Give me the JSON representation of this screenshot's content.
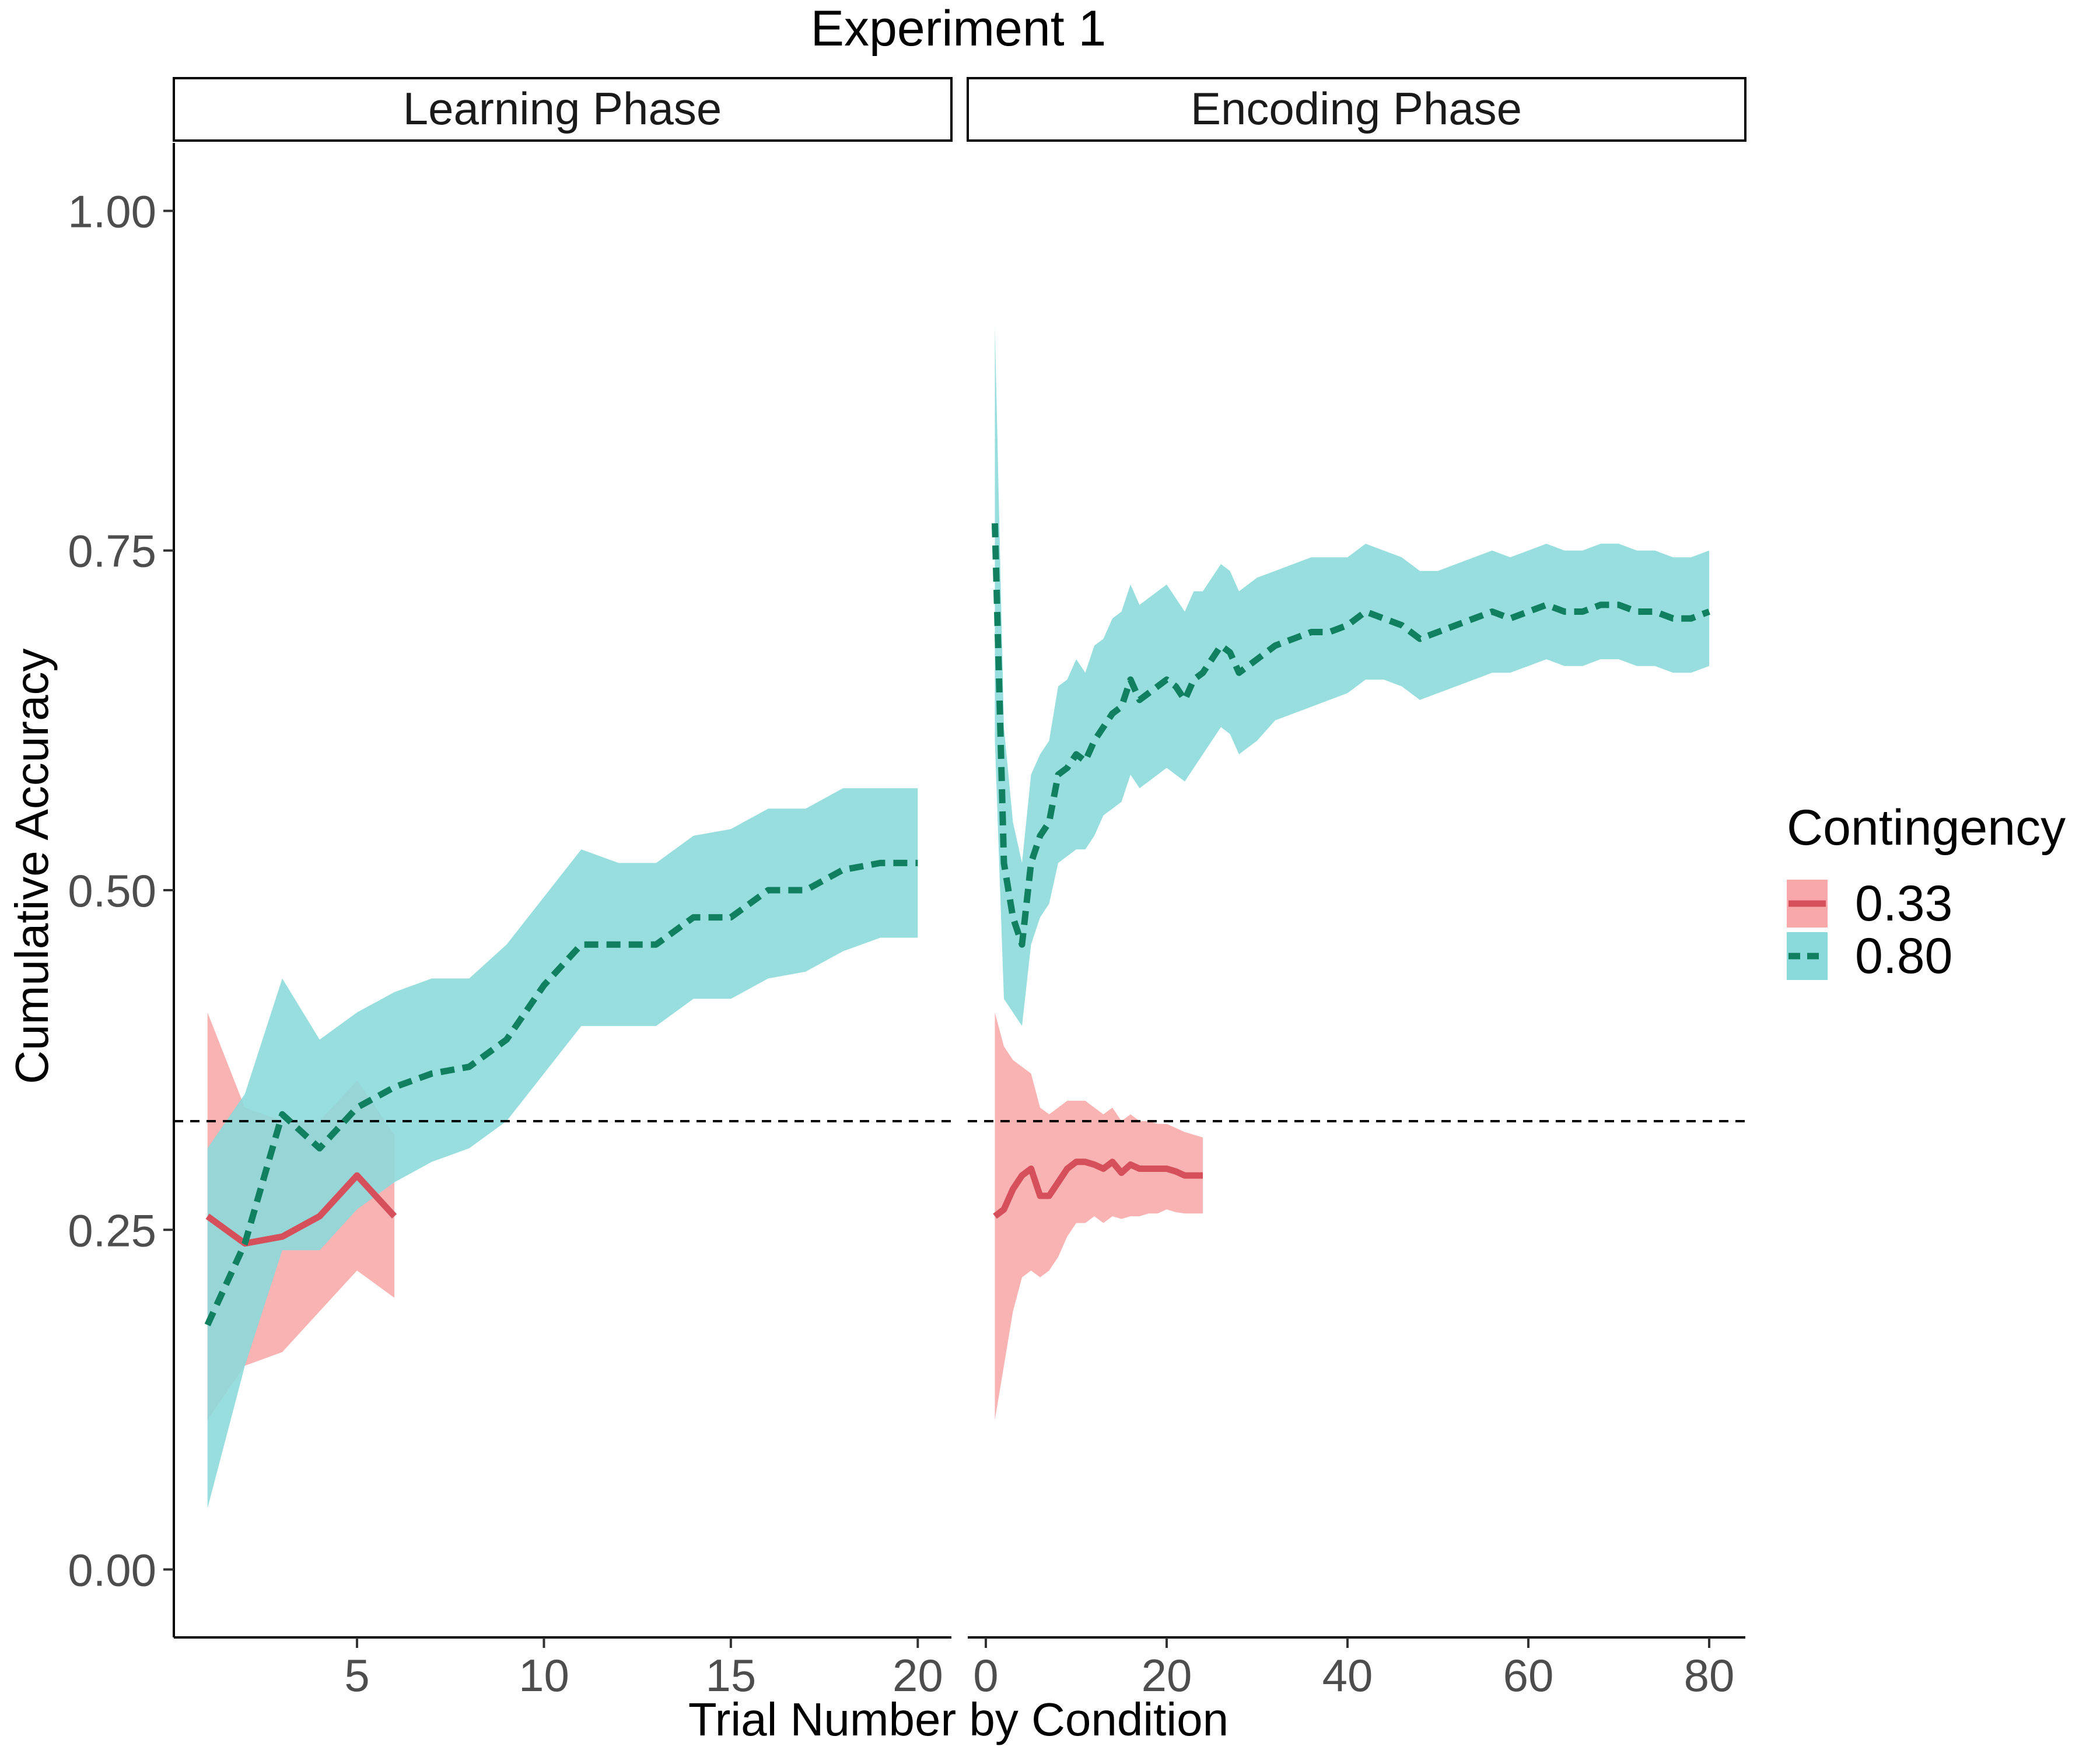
{
  "chart_data": {
    "type": "line",
    "title": "Experiment 1",
    "xlabel": "Trial Number by Condition",
    "ylabel": "Cumulative Accuracy",
    "ylim": [
      -0.05,
      1.05
    ],
    "y_ticks": [
      0.0,
      0.25,
      0.5,
      0.75,
      1.0
    ],
    "y_tick_labels": [
      "0.00",
      "0.25",
      "0.50",
      "0.75",
      "1.00"
    ],
    "reference_line": {
      "y": 0.33,
      "style": "dashed"
    },
    "grid": false,
    "legend": {
      "title": "Contingency",
      "position": "right",
      "entries": [
        {
          "label": "0.33",
          "color": "#D6505C",
          "fill": "#F8A8A8",
          "dash": "solid"
        },
        {
          "label": "0.80",
          "color": "#118060",
          "fill": "#8ADADB",
          "dash": "dashed"
        }
      ]
    },
    "panels": [
      {
        "strip": "Learning Phase",
        "xlim": [
          0.1,
          20.9
        ],
        "x_ticks": [
          5,
          10,
          15,
          20
        ],
        "x_tick_labels": [
          "5",
          "10",
          "15",
          "20"
        ],
        "series": [
          {
            "name": "0.33",
            "x": [
              1,
              2,
              3,
              4,
              5,
              6
            ],
            "y": [
              0.26,
              0.24,
              0.245,
              0.26,
              0.29,
              0.26
            ],
            "lower": [
              0.11,
              0.15,
              0.16,
              0.19,
              0.22,
              0.2
            ],
            "upper": [
              0.41,
              0.34,
              0.33,
              0.33,
              0.36,
              0.32
            ]
          },
          {
            "name": "0.80",
            "x": [
              1,
              2,
              3,
              4,
              5,
              6,
              7,
              8,
              9,
              10,
              11,
              12,
              13,
              14,
              15,
              16,
              17,
              18,
              19,
              20
            ],
            "y": [
              0.18,
              0.24,
              0.335,
              0.31,
              0.34,
              0.355,
              0.365,
              0.37,
              0.39,
              0.43,
              0.46,
              0.46,
              0.46,
              0.48,
              0.48,
              0.5,
              0.5,
              0.515,
              0.52,
              0.52
            ],
            "lower": [
              0.045,
              0.15,
              0.235,
              0.235,
              0.265,
              0.285,
              0.3,
              0.31,
              0.33,
              0.365,
              0.4,
              0.4,
              0.4,
              0.42,
              0.42,
              0.435,
              0.44,
              0.455,
              0.465,
              0.465
            ],
            "upper": [
              0.31,
              0.35,
              0.435,
              0.39,
              0.41,
              0.425,
              0.435,
              0.435,
              0.46,
              0.495,
              0.53,
              0.52,
              0.52,
              0.54,
              0.545,
              0.56,
              0.56,
              0.575,
              0.575,
              0.575
            ]
          }
        ]
      },
      {
        "strip": "Encoding Phase",
        "xlim": [
          -2,
          84
        ],
        "x_ticks": [
          0,
          20,
          40,
          60,
          80
        ],
        "x_tick_labels": [
          "0",
          "20",
          "40",
          "60",
          "80"
        ],
        "series": [
          {
            "name": "0.33",
            "x": [
              1,
              2,
              3,
              4,
              5,
              6,
              7,
              8,
              9,
              10,
              11,
              12,
              13,
              14,
              15,
              16,
              17,
              18,
              19,
              20,
              21,
              22,
              23,
              24
            ],
            "y": [
              0.26,
              0.265,
              0.28,
              0.29,
              0.295,
              0.275,
              0.275,
              0.285,
              0.295,
              0.3,
              0.3,
              0.298,
              0.295,
              0.3,
              0.292,
              0.298,
              0.295,
              0.295,
              0.295,
              0.295,
              0.293,
              0.29,
              0.29,
              0.29
            ],
            "lower": [
              0.11,
              0.15,
              0.19,
              0.215,
              0.22,
              0.215,
              0.22,
              0.23,
              0.245,
              0.255,
              0.255,
              0.26,
              0.255,
              0.26,
              0.258,
              0.26,
              0.26,
              0.262,
              0.262,
              0.265,
              0.263,
              0.262,
              0.262,
              0.262
            ],
            "upper": [
              0.41,
              0.385,
              0.375,
              0.37,
              0.365,
              0.34,
              0.335,
              0.34,
              0.345,
              0.345,
              0.345,
              0.34,
              0.335,
              0.34,
              0.33,
              0.335,
              0.33,
              0.33,
              0.328,
              0.328,
              0.325,
              0.322,
              0.32,
              0.318
            ]
          },
          {
            "name": "0.80",
            "x": [
              1,
              2,
              3,
              4,
              5,
              6,
              7,
              8,
              9,
              10,
              11,
              12,
              13,
              14,
              15,
              16,
              17,
              18,
              19,
              20,
              21,
              22,
              23,
              24,
              25,
              26,
              27,
              28,
              29,
              30,
              32,
              34,
              36,
              38,
              40,
              42,
              44,
              46,
              48,
              50,
              52,
              54,
              56,
              58,
              60,
              62,
              64,
              66,
              68,
              70,
              72,
              74,
              76,
              78,
              80
            ],
            "y": [
              0.77,
              0.52,
              0.48,
              0.46,
              0.52,
              0.54,
              0.55,
              0.585,
              0.59,
              0.6,
              0.595,
              0.61,
              0.62,
              0.63,
              0.635,
              0.655,
              0.64,
              0.645,
              0.65,
              0.655,
              0.65,
              0.64,
              0.655,
              0.66,
              0.67,
              0.68,
              0.675,
              0.66,
              0.665,
              0.67,
              0.68,
              0.685,
              0.69,
              0.69,
              0.695,
              0.705,
              0.7,
              0.695,
              0.685,
              0.69,
              0.695,
              0.7,
              0.705,
              0.7,
              0.705,
              0.71,
              0.705,
              0.705,
              0.71,
              0.71,
              0.705,
              0.705,
              0.7,
              0.7,
              0.705
            ],
            "lower": [
              0.61,
              0.42,
              0.41,
              0.4,
              0.46,
              0.48,
              0.49,
              0.52,
              0.525,
              0.53,
              0.53,
              0.54,
              0.555,
              0.56,
              0.565,
              0.585,
              0.575,
              0.58,
              0.585,
              0.59,
              0.585,
              0.58,
              0.59,
              0.6,
              0.61,
              0.62,
              0.615,
              0.6,
              0.605,
              0.61,
              0.625,
              0.63,
              0.635,
              0.64,
              0.645,
              0.655,
              0.655,
              0.65,
              0.64,
              0.645,
              0.65,
              0.655,
              0.66,
              0.66,
              0.665,
              0.67,
              0.665,
              0.665,
              0.67,
              0.67,
              0.665,
              0.665,
              0.66,
              0.66,
              0.665
            ],
            "upper": [
              0.915,
              0.62,
              0.55,
              0.52,
              0.585,
              0.6,
              0.61,
              0.65,
              0.655,
              0.67,
              0.66,
              0.68,
              0.685,
              0.7,
              0.705,
              0.725,
              0.71,
              0.715,
              0.72,
              0.725,
              0.715,
              0.705,
              0.72,
              0.72,
              0.73,
              0.74,
              0.735,
              0.72,
              0.725,
              0.73,
              0.735,
              0.74,
              0.745,
              0.745,
              0.745,
              0.755,
              0.75,
              0.745,
              0.735,
              0.735,
              0.74,
              0.745,
              0.75,
              0.745,
              0.75,
              0.755,
              0.75,
              0.75,
              0.755,
              0.755,
              0.75,
              0.75,
              0.745,
              0.745,
              0.75
            ]
          }
        ]
      }
    ]
  }
}
